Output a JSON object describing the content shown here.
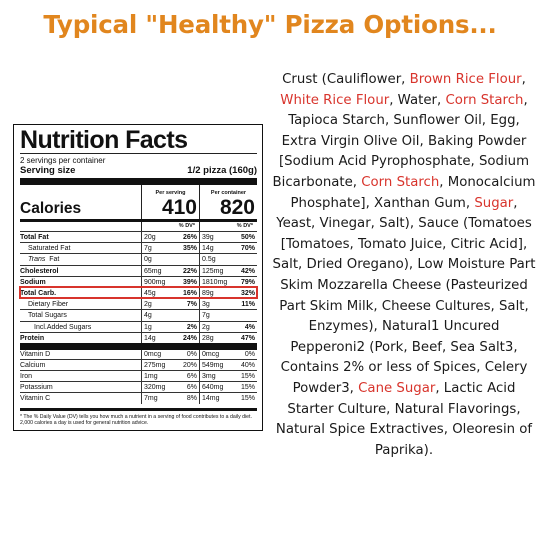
{
  "headline": "Typical \"Healthy\" Pizza Options...",
  "label": {
    "title": "Nutrition Facts",
    "servings": "2 servings per container",
    "serving_size_label": "Serving size",
    "serving_size_value": "1/2 pizza (160g)",
    "calories_label": "Calories",
    "per_serving_caption": "Per serving",
    "per_container_caption": "Per container",
    "calories_serving": "410",
    "calories_container": "820",
    "dv_header": "% DV*",
    "nutrients": [
      {
        "label": "Total Fat",
        "a1": "20g",
        "p1": "26%",
        "a2": "39g",
        "p2": "50%",
        "bold": true
      },
      {
        "label": "Saturated Fat",
        "a1": "7g",
        "p1": "35%",
        "a2": "14g",
        "p2": "70%",
        "indent": 1
      },
      {
        "label": "Trans",
        "label_suffix": "Fat",
        "a1": "0g",
        "p1": "",
        "a2": "0.5g",
        "p2": "",
        "indent": 1
      },
      {
        "label": "Cholesterol",
        "a1": "65mg",
        "p1": "22%",
        "a2": "125mg",
        "p2": "42%",
        "bold": true
      },
      {
        "label": "Sodium",
        "a1": "900mg",
        "p1": "39%",
        "a2": "1810mg",
        "p2": "79%",
        "bold": true
      },
      {
        "label": "Total Carb.",
        "a1": "45g",
        "p1": "16%",
        "a2": "89g",
        "p2": "32%",
        "bold": true,
        "highlight": true
      },
      {
        "label": "Dietary Fiber",
        "a1": "2g",
        "p1": "7%",
        "a2": "3g",
        "p2": "11%",
        "indent": 1
      },
      {
        "label": "Total Sugars",
        "a1": "4g",
        "p1": "",
        "a2": "7g",
        "p2": "",
        "indent": 1
      },
      {
        "label": "Incl.Added Sugars",
        "a1": "1g",
        "p1": "2%",
        "a2": "2g",
        "p2": "4%",
        "indent": 2
      },
      {
        "label": "Protein",
        "a1": "14g",
        "p1": "24%",
        "a2": "28g",
        "p2": "47%",
        "bold": true
      }
    ],
    "vitamins": [
      {
        "label": "Vitamin D",
        "a1": "0mcg",
        "p1": "0%",
        "a2": "0mcg",
        "p2": "0%"
      },
      {
        "label": "Calcium",
        "a1": "275mg",
        "p1": "20%",
        "a2": "549mg",
        "p2": "40%"
      },
      {
        "label": "Iron",
        "a1": "1mg",
        "p1": "6%",
        "a2": "3mg",
        "p2": "15%"
      },
      {
        "label": "Potassium",
        "a1": "320mg",
        "p1": "6%",
        "a2": "640mg",
        "p2": "15%"
      },
      {
        "label": "Vitamin C",
        "a1": "7mg",
        "p1": "8%",
        "a2": "14mg",
        "p2": "15%"
      }
    ],
    "footnote": "* The % Daily Value (DV) tells you how much a nutrient in a serving of food contributes to a daily diet. 2,000 calories a day is used for general nutrition advice."
  },
  "ingredients": [
    {
      "text": "Crust (Cauliflower, "
    },
    {
      "text": "Brown Rice Flour",
      "hl": true
    },
    {
      "text": ", "
    },
    {
      "text": "White Rice Flour",
      "hl": true
    },
    {
      "text": ", Water, "
    },
    {
      "text": "Corn Starch",
      "hl": true
    },
    {
      "text": ", Tapioca Starch, Sunflower Oil, Egg, Extra Virgin Olive Oil, Baking Powder [Sodium Acid Pyrophosphate, Sodium Bicarbonate, "
    },
    {
      "text": "Corn Starch",
      "hl": true
    },
    {
      "text": ", Monocalcium Phosphate], Xanthan Gum, "
    },
    {
      "text": "Sugar",
      "hl": true
    },
    {
      "text": ", Yeast, Vinegar, Salt), Sauce (Tomatoes [Tomatoes, Tomato Juice, Citric Acid], Salt, Dried Oregano), Low Moisture Part Skim Mozzarella Cheese (Pasteurized Part Skim Milk, Cheese Cultures, Salt, Enzymes), Natural1 Uncured Pepperoni2 (Pork, Beef, Sea Salt3, Contains 2% or less of Spices, Celery Powder3, "
    },
    {
      "text": "Cane Sugar",
      "hl": true
    },
    {
      "text": ", Lactic Acid Starter Culture, Natural Flavorings, Natural Spice Extractives, Oleoresin of Paprika)."
    }
  ],
  "colors": {
    "headline": "#e1861e",
    "highlight": "#d8342c",
    "text": "#1a1a1a"
  }
}
